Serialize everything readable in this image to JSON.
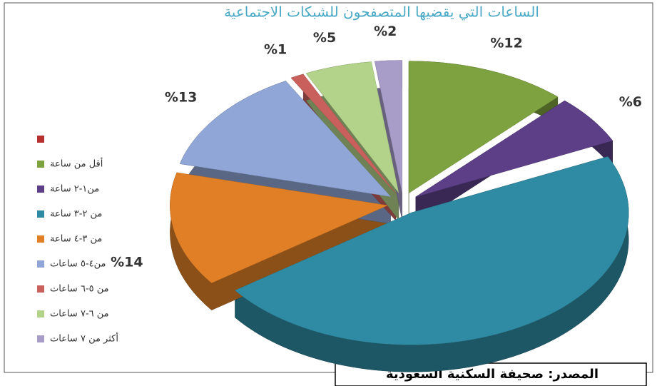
{
  "chart_data": {
    "type": "pie3d",
    "title": "الساعات التي يقضيها المتصفحون للشبكات الاجتماعية",
    "source": "المصدر: صحيفة السكنية السعودية",
    "categories": [
      null,
      "أقل من ساعة",
      "من١-٢ ساعة",
      "من ٢-٣ ساعة",
      "من ٣-٤ ساعة",
      "من٤-٥ ساعات",
      "من ٥-٦ ساعات",
      "من ٦-٧ ساعات",
      "أكثر من ٧ ساعات"
    ],
    "values": [
      null,
      12,
      6,
      47,
      14,
      13,
      1,
      5,
      2
    ],
    "value_labels": [
      null,
      "%12",
      "%6",
      null,
      "%14",
      "%13",
      "%1",
      "%5",
      "%2"
    ],
    "colors": [
      "#b5302f",
      "#7ea23f",
      "#5c3f87",
      "#2f8ba3",
      "#e07f26",
      "#8fa6d6",
      "#c9605c",
      "#b3d28a",
      "#a89cc9"
    ]
  }
}
